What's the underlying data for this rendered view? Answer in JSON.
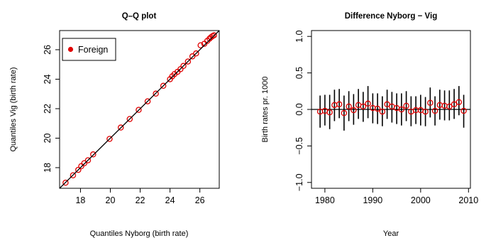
{
  "chart_data": [
    {
      "type": "scatter",
      "title": "Q–Q plot",
      "xlabel": "Quantiles Nyborg (birth rate)",
      "ylabel": "Quantiles Vig (birth rate)",
      "xlim": [
        16.6,
        27.3
      ],
      "ylim": [
        16.6,
        27.3
      ],
      "xticks": [
        18,
        20,
        22,
        24,
        26
      ],
      "yticks": [
        18,
        20,
        22,
        24,
        26
      ],
      "tick_labels_x": [
        "18",
        "20",
        "22",
        "24",
        "26"
      ],
      "tick_labels_y": [
        "18",
        "20",
        "22",
        "24",
        "26"
      ],
      "reference_line": "y = x",
      "legend": {
        "label": "Foreign",
        "position": "top-left",
        "color": "#e00000"
      },
      "point_color": "#e00000",
      "points": [
        [
          17.0,
          16.98
        ],
        [
          17.5,
          17.48
        ],
        [
          17.85,
          17.85
        ],
        [
          18.05,
          18.1
        ],
        [
          18.25,
          18.3
        ],
        [
          18.5,
          18.5
        ],
        [
          18.85,
          18.9
        ],
        [
          19.95,
          19.95
        ],
        [
          20.7,
          20.72
        ],
        [
          21.3,
          21.3
        ],
        [
          21.9,
          21.92
        ],
        [
          22.5,
          22.5
        ],
        [
          23.05,
          23.02
        ],
        [
          23.55,
          23.55
        ],
        [
          24.0,
          24.0
        ],
        [
          24.15,
          24.2
        ],
        [
          24.3,
          24.35
        ],
        [
          24.5,
          24.5
        ],
        [
          24.7,
          24.68
        ],
        [
          24.9,
          24.9
        ],
        [
          25.2,
          25.2
        ],
        [
          25.5,
          25.55
        ],
        [
          25.75,
          25.75
        ],
        [
          26.05,
          26.3
        ],
        [
          26.3,
          26.4
        ],
        [
          26.5,
          26.6
        ],
        [
          26.65,
          26.75
        ],
        [
          26.75,
          26.85
        ],
        [
          26.85,
          26.92
        ],
        [
          26.95,
          26.98
        ]
      ]
    },
    {
      "type": "scatter",
      "title": "Difference Nyborg − Vig",
      "xlabel": "Year",
      "ylabel": "Birth rates pr. 1000",
      "xlim": [
        1977.2,
        2010.4
      ],
      "ylim": [
        -1.08,
        1.08
      ],
      "xticks": [
        1980,
        1990,
        2000,
        2010
      ],
      "yticks": [
        -1.0,
        -0.5,
        0.0,
        0.5,
        1.0
      ],
      "tick_labels_x": [
        "1980",
        "1990",
        "2000",
        "2010"
      ],
      "tick_labels_y": [
        "−1.0",
        "−0.5",
        "0.0",
        "0.5",
        "1.0"
      ],
      "zero_line": 0,
      "point_color": "#e00000",
      "bar_color": "#000000",
      "x": [
        1979,
        1980,
        1981,
        1982,
        1983,
        1984,
        1985,
        1986,
        1987,
        1988,
        1989,
        1990,
        1991,
        1992,
        1993,
        1994,
        1995,
        1996,
        1997,
        1998,
        1999,
        2000,
        2001,
        2002,
        2003,
        2004,
        2005,
        2006,
        2007,
        2008,
        2009
      ],
      "y": [
        -0.03,
        -0.02,
        -0.04,
        0.06,
        0.07,
        -0.05,
        0.04,
        -0.01,
        0.06,
        0.04,
        0.08,
        0.02,
        0.01,
        -0.03,
        0.07,
        0.04,
        0.02,
        0.0,
        0.05,
        -0.03,
        -0.01,
        -0.01,
        -0.03,
        0.09,
        -0.02,
        0.06,
        0.05,
        0.04,
        0.07,
        0.1,
        -0.02
      ],
      "err_low": [
        -0.25,
        -0.22,
        -0.27,
        -0.16,
        -0.12,
        -0.29,
        -0.16,
        -0.21,
        -0.13,
        -0.17,
        -0.12,
        -0.19,
        -0.2,
        -0.23,
        -0.13,
        -0.18,
        -0.2,
        -0.22,
        -0.16,
        -0.23,
        -0.2,
        -0.22,
        -0.23,
        -0.11,
        -0.22,
        -0.14,
        -0.15,
        -0.15,
        -0.13,
        -0.08,
        -0.25
      ],
      "err_high": [
        0.19,
        0.2,
        0.2,
        0.27,
        0.28,
        0.19,
        0.25,
        0.21,
        0.28,
        0.24,
        0.32,
        0.22,
        0.22,
        0.18,
        0.27,
        0.24,
        0.22,
        0.22,
        0.25,
        0.18,
        0.18,
        0.2,
        0.17,
        0.3,
        0.18,
        0.27,
        0.26,
        0.26,
        0.28,
        0.32,
        0.2
      ]
    }
  ]
}
